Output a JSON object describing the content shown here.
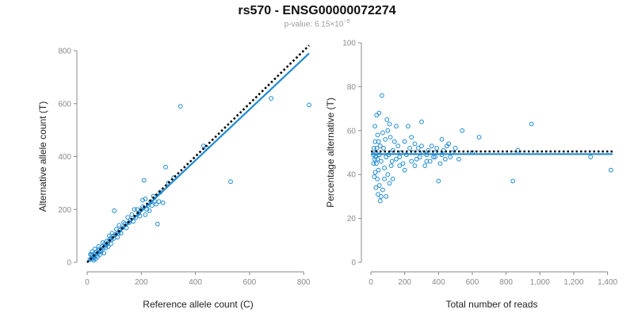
{
  "header": {
    "title": "rs570 - ENSG00000072274",
    "pvalue_label": "p-value: 6.15×10",
    "pvalue_exponent": "−5"
  },
  "colors": {
    "points": "#1f8ad2",
    "fit_line": "#1f8ad2",
    "reference_line": "#000000"
  },
  "chart_data": [
    {
      "type": "scatter",
      "xlabel": "Reference allele count (C)",
      "ylabel": "Alternative allele count (T)",
      "xlim": [
        0,
        820
      ],
      "ylim": [
        0,
        800
      ],
      "xticks": [
        0,
        200,
        400,
        600,
        800
      ],
      "yticks": [
        0,
        200,
        400,
        600,
        800
      ],
      "xtick_labels": [
        "0",
        "200",
        "400",
        "600",
        "800"
      ],
      "ytick_labels": [
        "0",
        "200",
        "400",
        "600",
        "800"
      ],
      "grid": false,
      "reference_line": {
        "x": [
          0,
          820
        ],
        "y": [
          0,
          820
        ],
        "style": "dotted"
      },
      "fit_line": {
        "x": [
          0,
          820
        ],
        "y": [
          0,
          790
        ]
      },
      "points": [
        [
          345,
          590
        ],
        [
          680,
          620
        ],
        [
          820,
          595
        ],
        [
          530,
          305
        ],
        [
          430,
          440
        ],
        [
          290,
          360
        ],
        [
          210,
          310
        ],
        [
          245,
          250
        ],
        [
          270,
          265
        ],
        [
          300,
          300
        ],
        [
          260,
          145
        ],
        [
          225,
          215
        ],
        [
          235,
          230
        ],
        [
          200,
          200
        ],
        [
          190,
          185
        ],
        [
          180,
          170
        ],
        [
          175,
          200
        ],
        [
          160,
          160
        ],
        [
          155,
          150
        ],
        [
          140,
          145
        ],
        [
          130,
          130
        ],
        [
          120,
          120
        ],
        [
          115,
          110
        ],
        [
          105,
          105
        ],
        [
          100,
          195
        ],
        [
          95,
          100
        ],
        [
          90,
          85
        ],
        [
          85,
          90
        ],
        [
          80,
          80
        ],
        [
          75,
          70
        ],
        [
          70,
          65
        ],
        [
          65,
          70
        ],
        [
          60,
          55
        ],
        [
          55,
          60
        ],
        [
          50,
          45
        ],
        [
          45,
          50
        ],
        [
          40,
          35
        ],
        [
          35,
          40
        ],
        [
          30,
          30
        ],
        [
          25,
          20
        ],
        [
          20,
          25
        ],
        [
          15,
          15
        ],
        [
          10,
          10
        ],
        [
          12,
          30
        ],
        [
          18,
          40
        ],
        [
          22,
          15
        ],
        [
          28,
          50
        ],
        [
          38,
          20
        ],
        [
          42,
          60
        ],
        [
          48,
          30
        ],
        [
          52,
          40
        ],
        [
          58,
          75
        ],
        [
          62,
          35
        ],
        [
          68,
          55
        ],
        [
          72,
          80
        ],
        [
          78,
          60
        ],
        [
          82,
          100
        ],
        [
          88,
          70
        ],
        [
          92,
          110
        ],
        [
          98,
          90
        ],
        [
          108,
          125
        ],
        [
          112,
          95
        ],
        [
          118,
          140
        ],
        [
          125,
          110
        ],
        [
          135,
          150
        ],
        [
          145,
          130
        ],
        [
          150,
          170
        ],
        [
          165,
          180
        ],
        [
          170,
          155
        ],
        [
          185,
          200
        ],
        [
          195,
          175
        ],
        [
          205,
          210
        ],
        [
          215,
          240
        ],
        [
          220,
          200
        ],
        [
          230,
          195
        ],
        [
          240,
          215
        ],
        [
          250,
          230
        ],
        [
          255,
          220
        ],
        [
          265,
          230
        ],
        [
          280,
          225
        ],
        [
          320,
          320
        ],
        [
          440,
          435
        ],
        [
          205,
          235
        ],
        [
          215,
          180
        ],
        [
          30,
          12
        ],
        [
          24,
          8
        ],
        [
          16,
          30
        ],
        [
          34,
          26
        ],
        [
          44,
          38
        ]
      ]
    },
    {
      "type": "scatter",
      "xlabel": "Total number of reads",
      "ylabel": "Percentage alternative (T)",
      "xlim": [
        0,
        1430
      ],
      "ylim": [
        0,
        100
      ],
      "xticks": [
        0,
        200,
        400,
        600,
        800,
        1000,
        1200,
        1400
      ],
      "yticks": [
        0,
        20,
        40,
        60,
        80,
        100
      ],
      "xtick_labels": [
        "0",
        "200",
        "400",
        "600",
        "800",
        "1,000",
        "1,200",
        "1,400"
      ],
      "ytick_labels": [
        "0",
        "20",
        "40",
        "60",
        "80",
        "100"
      ],
      "grid": false,
      "reference_line": {
        "x": [
          0,
          1430
        ],
        "y": [
          50.5,
          50.5
        ],
        "style": "dotted"
      },
      "fit_line": {
        "x": [
          0,
          1430
        ],
        "y": [
          49.3,
          49.3
        ]
      },
      "points": [
        [
          1420,
          42
        ],
        [
          1300,
          48
        ],
        [
          950,
          63
        ],
        [
          870,
          51
        ],
        [
          840,
          37
        ],
        [
          640,
          57
        ],
        [
          600,
          50
        ],
        [
          540,
          60
        ],
        [
          520,
          47
        ],
        [
          500,
          52
        ],
        [
          480,
          50
        ],
        [
          470,
          48
        ],
        [
          460,
          54
        ],
        [
          450,
          53
        ],
        [
          440,
          47
        ],
        [
          430,
          51
        ],
        [
          420,
          49
        ],
        [
          410,
          45
        ],
        [
          400,
          37
        ],
        [
          390,
          52
        ],
        [
          380,
          50
        ],
        [
          370,
          48
        ],
        [
          360,
          53
        ],
        [
          350,
          46
        ],
        [
          340,
          51
        ],
        [
          330,
          49
        ],
        [
          320,
          44
        ],
        [
          310,
          50
        ],
        [
          300,
          64
        ],
        [
          290,
          48
        ],
        [
          280,
          52
        ],
        [
          270,
          47
        ],
        [
          260,
          54
        ],
        [
          250,
          50
        ],
        [
          240,
          46
        ],
        [
          230,
          52
        ],
        [
          220,
          62
        ],
        [
          210,
          49
        ],
        [
          200,
          55
        ],
        [
          190,
          45
        ],
        [
          180,
          50
        ],
        [
          170,
          48
        ],
        [
          160,
          53
        ],
        [
          150,
          47
        ],
        [
          140,
          55
        ],
        [
          130,
          51
        ],
        [
          120,
          44
        ],
        [
          110,
          63
        ],
        [
          110,
          36
        ],
        [
          100,
          60
        ],
        [
          100,
          40
        ],
        [
          95,
          65
        ],
        [
          90,
          48
        ],
        [
          85,
          56
        ],
        [
          80,
          43
        ],
        [
          75,
          52
        ],
        [
          70,
          59
        ],
        [
          70,
          33
        ],
        [
          65,
          76
        ],
        [
          60,
          46
        ],
        [
          60,
          30
        ],
        [
          55,
          28
        ],
        [
          55,
          53
        ],
        [
          50,
          49
        ],
        [
          50,
          35
        ],
        [
          48,
          68
        ],
        [
          45,
          55
        ],
        [
          45,
          42
        ],
        [
          42,
          31
        ],
        [
          40,
          58
        ],
        [
          40,
          47
        ],
        [
          38,
          38
        ],
        [
          35,
          52
        ],
        [
          34,
          67
        ],
        [
          32,
          45
        ],
        [
          30,
          34
        ],
        [
          30,
          50
        ],
        [
          28,
          48
        ],
        [
          26,
          41
        ],
        [
          25,
          55
        ],
        [
          24,
          62
        ],
        [
          22,
          47
        ],
        [
          20,
          39
        ],
        [
          18,
          52
        ],
        [
          16,
          45
        ],
        [
          15,
          49
        ],
        [
          130,
          38
        ],
        [
          150,
          62
        ],
        [
          170,
          44
        ],
        [
          200,
          42
        ],
        [
          240,
          57
        ],
        [
          260,
          44
        ],
        [
          330,
          46
        ],
        [
          380,
          48
        ],
        [
          300,
          53
        ],
        [
          420,
          56
        ],
        [
          90,
          30
        ],
        [
          80,
          38
        ],
        [
          105,
          49
        ],
        [
          115,
          57
        ],
        [
          125,
          46
        ]
      ]
    }
  ]
}
